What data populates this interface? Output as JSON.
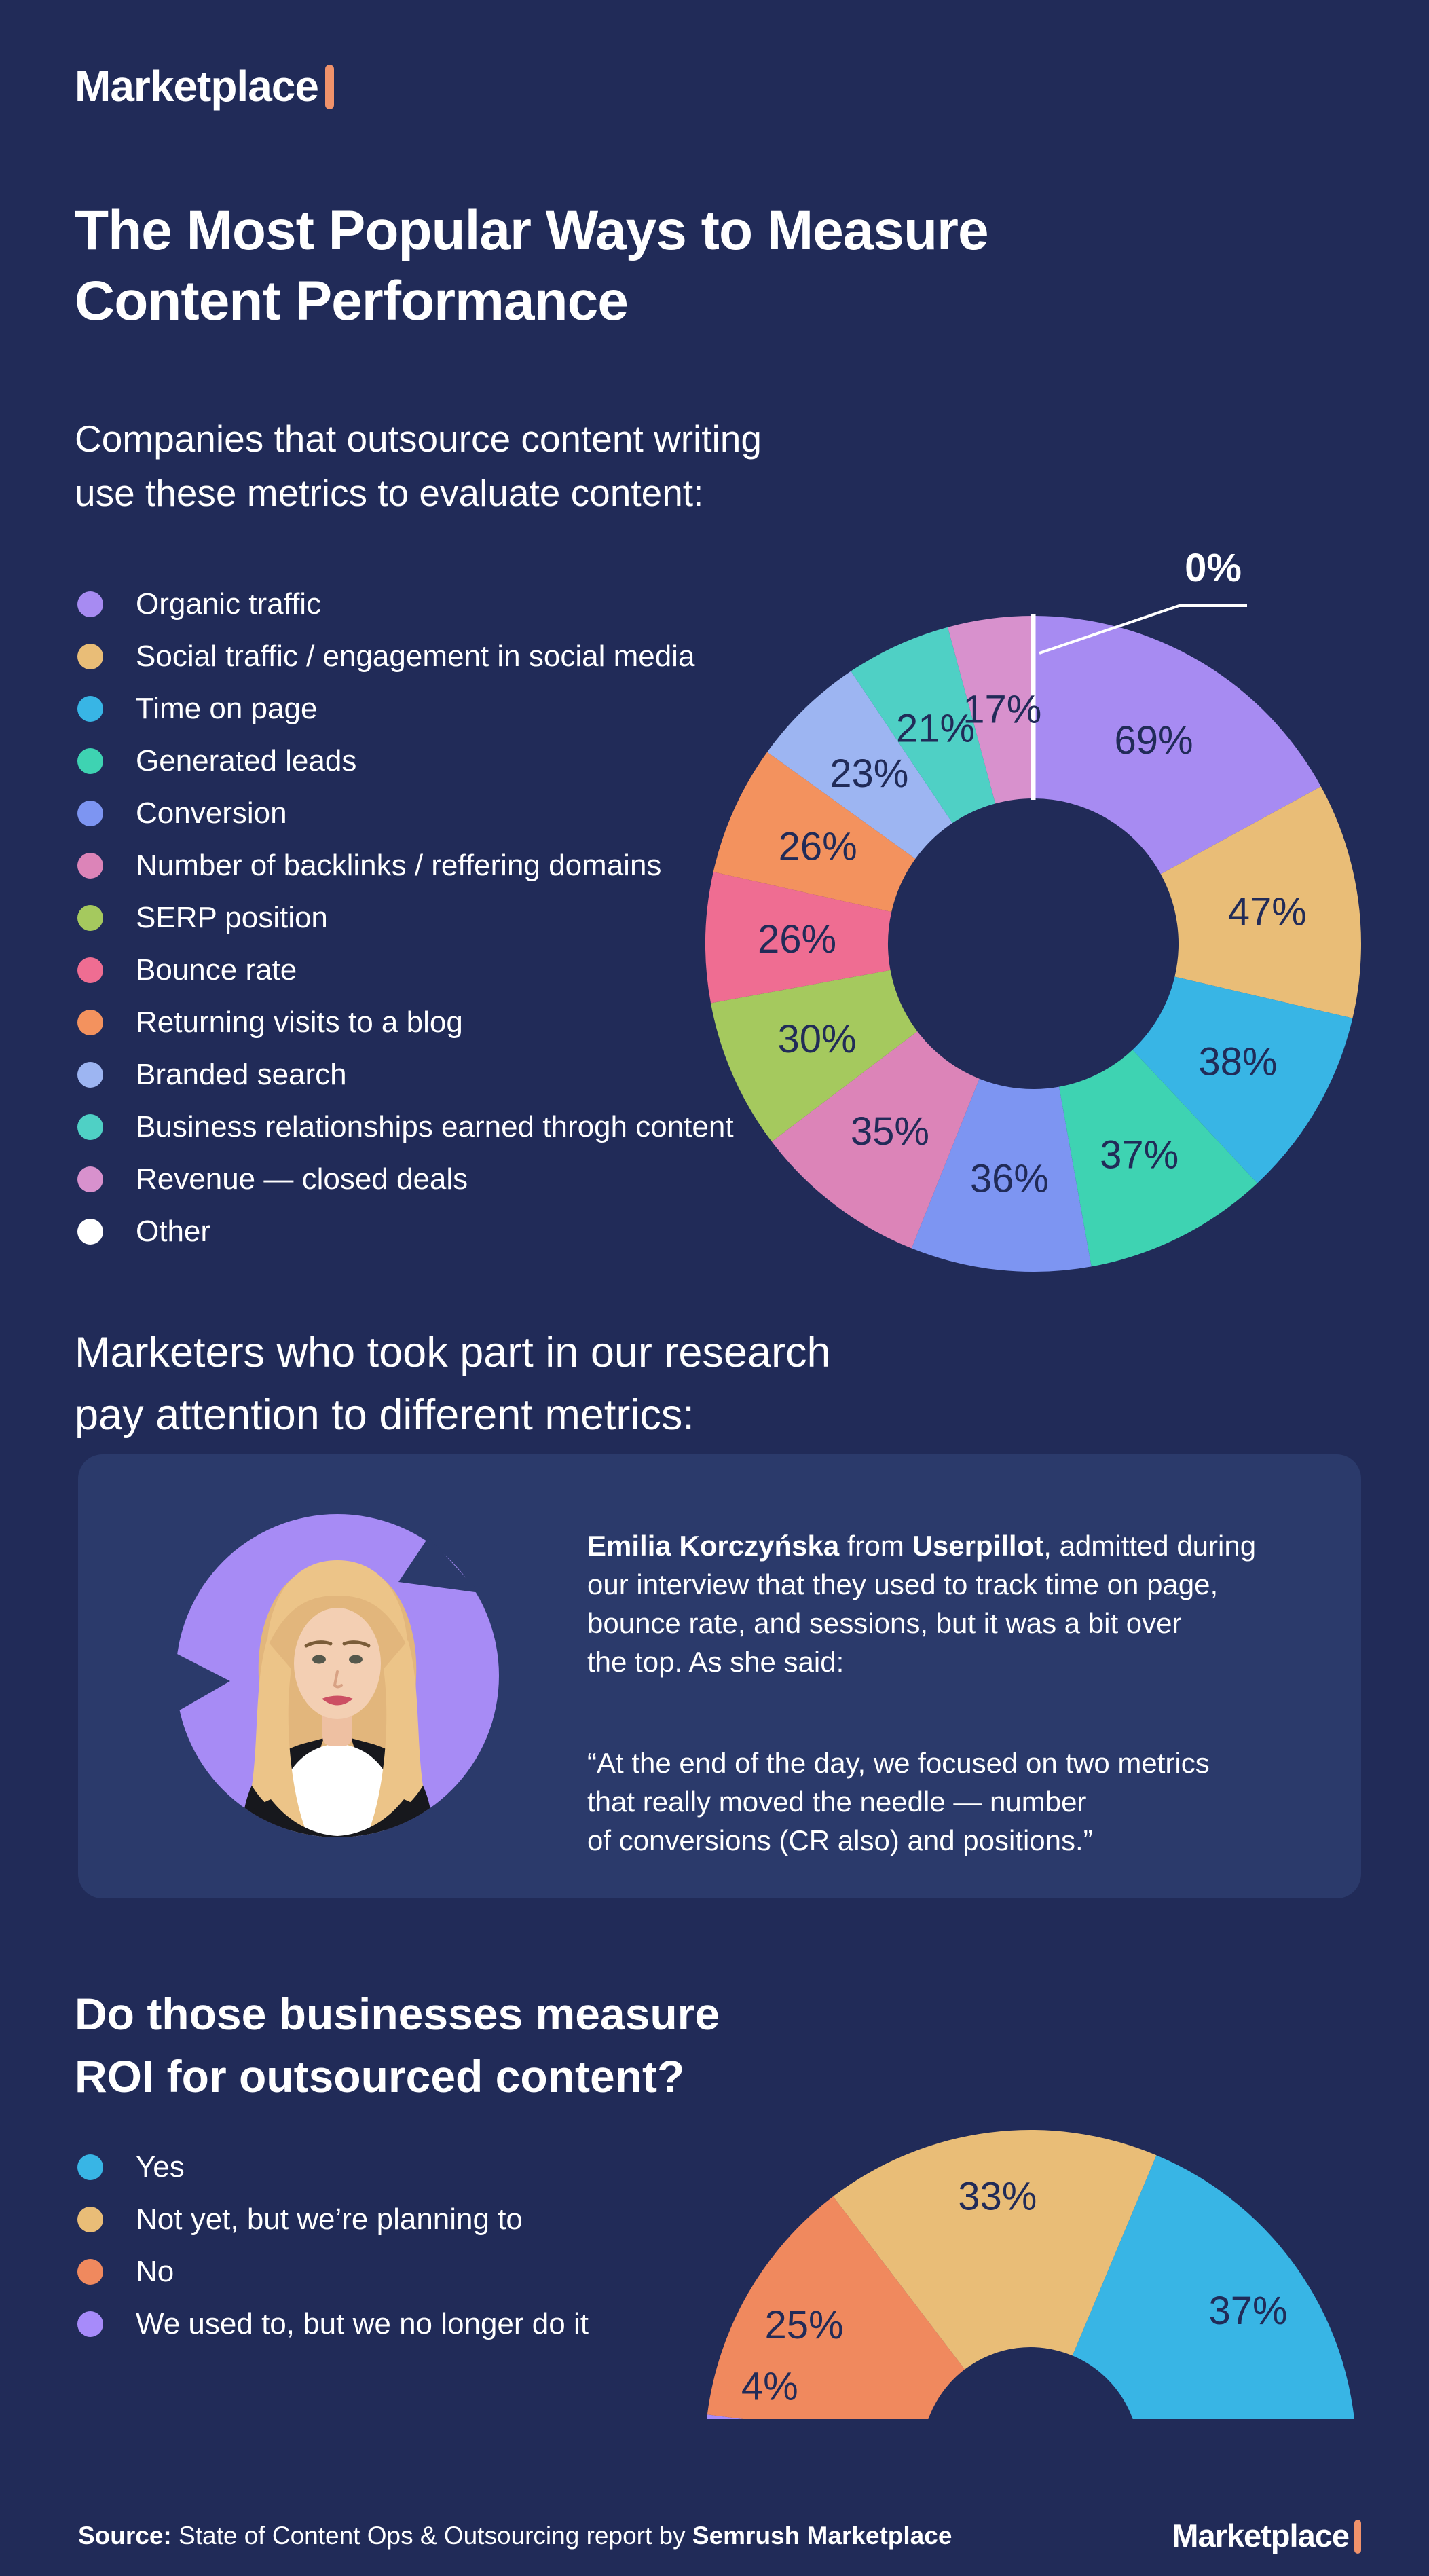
{
  "page": {
    "background": "#212b58",
    "card_background": "#2b3a6b",
    "text_color": "#ffffff",
    "slice_label_color": "#212b58",
    "accent_orange": "#f0926b",
    "avatar_circle_color": "#a78bf5"
  },
  "header": {
    "logo_text": "Marketplace"
  },
  "intro": {
    "title_line1": "The Most Popular Ways to Measure",
    "title_line2": "Content Performance",
    "subtitle_line1": "Companies that outsource content writing",
    "subtitle_line2": "use these metrics to evaluate content:"
  },
  "section_marketers": {
    "heading_line1": "Marketers who took part in our research",
    "heading_line2": "pay attention to different metrics:"
  },
  "quote_card": {
    "avatar": "emilia-korczynska-portrait",
    "intro_segments": [
      {
        "text": "Emilia Korczyńska",
        "bold": true
      },
      {
        "text": " from ",
        "bold": false
      },
      {
        "text": "Userpillot",
        "bold": true
      },
      {
        "text": ", admitted during\nour interview that they used to track time on page,\nbounce rate, and sessions, but it was a bit over\nthe top. As she said:",
        "bold": false
      }
    ],
    "quote": "“At the end of the day, we focused on two metrics\nthat really moved the needle — number\nof conversions (CR also) and positions.”"
  },
  "section_roi": {
    "heading_line1": "Do those businesses measure",
    "heading_line2": "ROI for outsourced content?"
  },
  "footer": {
    "source_label": "Source:",
    "source_text": " State of Content Ops & Outsourcing report by ",
    "source_brand": "Semrush Marketplace",
    "logo_text": "Marketplace"
  },
  "chart_data": [
    {
      "type": "donut",
      "context": "Companies that outsource content writing use these metrics to evaluate content",
      "unit": "percent",
      "legend_position": "left",
      "slices": [
        {
          "label": "Other",
          "value": 0,
          "color": "#ffffff"
        },
        {
          "label": "Organic traffic",
          "value": 69,
          "color": "#a78bf2"
        },
        {
          "label": "Social traffic / engagement in social media",
          "value": 47,
          "color": "#e9bd77"
        },
        {
          "label": "Time on page",
          "value": 38,
          "color": "#38b5e5"
        },
        {
          "label": "Generated leads",
          "value": 37,
          "color": "#3ed3b2"
        },
        {
          "label": "Conversion",
          "value": 36,
          "color": "#7d95f2"
        },
        {
          "label": "Number of backlinks / reffering domains",
          "value": 35,
          "color": "#dc84b8"
        },
        {
          "label": "SERP position",
          "value": 30,
          "color": "#a5c95e"
        },
        {
          "label": "Bounce rate",
          "value": 26,
          "color": "#ef6d92"
        },
        {
          "label": "Returning visits to a blog",
          "value": 26,
          "color": "#f3925e"
        },
        {
          "label": "Branded search",
          "value": 23,
          "color": "#9db5f2"
        },
        {
          "label": "Business relationships earned throgh content",
          "value": 21,
          "color": "#4fd0c5"
        },
        {
          "label": "Revenue — closed deals",
          "value": 17,
          "color": "#d891cd"
        }
      ],
      "legend_order": [
        1,
        2,
        3,
        4,
        5,
        6,
        7,
        8,
        9,
        10,
        11,
        12,
        0
      ],
      "callout": {
        "label": "0%",
        "for": "Other"
      }
    },
    {
      "type": "half-donut",
      "context": "Do those businesses measure ROI for outsourced content?",
      "unit": "percent",
      "legend_position": "left",
      "slices": [
        {
          "label": "We used to, but we no longer do it",
          "value": 4,
          "color": "#a78bfa"
        },
        {
          "label": "No",
          "value": 25,
          "color": "#f0895e"
        },
        {
          "label": "Not yet, but we’re planning to",
          "value": 33,
          "color": "#e9bd77"
        },
        {
          "label": "Yes",
          "value": 37,
          "color": "#38b5e5"
        }
      ],
      "legend_order": [
        3,
        2,
        1,
        0
      ]
    }
  ]
}
